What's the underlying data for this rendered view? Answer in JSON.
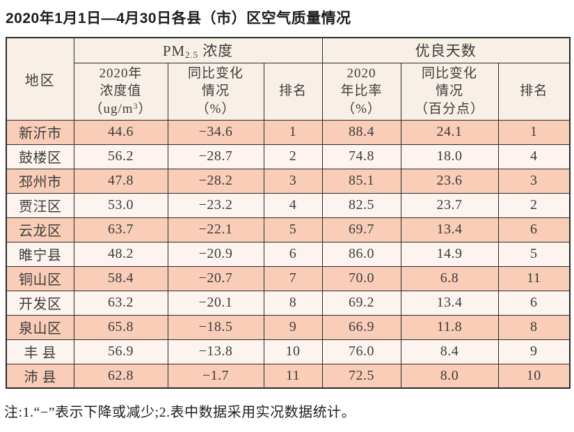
{
  "title": "2020年1月1日—4月30日各县（市）区空气质量情况",
  "footnote": "注:1.“−”表示下降或减少;2.表中数据采用实况数据统计。",
  "colors": {
    "row_odd_bg": "#f9cdb7",
    "row_even_bg": "#fdf4ef",
    "header_bg": "#f8f0e7",
    "border": "#2a2a2a",
    "text": "#3c3c3c",
    "title_text": "#1c1c1c"
  },
  "table": {
    "headers": {
      "region": "地区",
      "pm25_group": {
        "prefix": "PM",
        "sub": "2.5",
        "suffix": " 浓度"
      },
      "good_group": "优良天数",
      "pm25_value": {
        "line1": "2020年",
        "line2": "浓度值",
        "unit_prefix": "（ug/m",
        "unit_sup": "3",
        "unit_suffix": "）"
      },
      "pm25_change": {
        "line1": "同比变化",
        "line2": "情况",
        "line3": "（%）"
      },
      "pm25_rank": "排名",
      "good_value": {
        "line1": "2020",
        "line2": "年比率",
        "line3": "（%）"
      },
      "good_change": {
        "line1": "同比变化",
        "line2": "情况",
        "line3": "（百分点）"
      },
      "good_rank": "排名"
    },
    "rows": [
      {
        "region": "新沂市",
        "pm25_value": "44.6",
        "pm25_change": "−34.6",
        "pm25_rank": "1",
        "good_value": "88.4",
        "good_change": "24.1",
        "good_rank": "1"
      },
      {
        "region": "鼓楼区",
        "pm25_value": "56.2",
        "pm25_change": "−28.7",
        "pm25_rank": "2",
        "good_value": "74.8",
        "good_change": "18.0",
        "good_rank": "4"
      },
      {
        "region": "邳州市",
        "pm25_value": "47.8",
        "pm25_change": "−28.2",
        "pm25_rank": "3",
        "good_value": "85.1",
        "good_change": "23.6",
        "good_rank": "3"
      },
      {
        "region": "贾汪区",
        "pm25_value": "53.0",
        "pm25_change": "−23.2",
        "pm25_rank": "4",
        "good_value": "82.5",
        "good_change": "23.7",
        "good_rank": "2"
      },
      {
        "region": "云龙区",
        "pm25_value": "63.7",
        "pm25_change": "−22.1",
        "pm25_rank": "5",
        "good_value": "69.7",
        "good_change": "13.4",
        "good_rank": "6"
      },
      {
        "region": "睢宁县",
        "pm25_value": "48.2",
        "pm25_change": "−20.9",
        "pm25_rank": "6",
        "good_value": "86.0",
        "good_change": "14.9",
        "good_rank": "5"
      },
      {
        "region": "铜山区",
        "pm25_value": "58.4",
        "pm25_change": "−20.7",
        "pm25_rank": "7",
        "good_value": "70.0",
        "good_change": "6.8",
        "good_rank": "11"
      },
      {
        "region": "开发区",
        "pm25_value": "63.2",
        "pm25_change": "−20.1",
        "pm25_rank": "8",
        "good_value": "69.2",
        "good_change": "13.4",
        "good_rank": "6"
      },
      {
        "region": "泉山区",
        "pm25_value": "65.8",
        "pm25_change": "−18.5",
        "pm25_rank": "9",
        "good_value": "66.9",
        "good_change": "11.8",
        "good_rank": "8"
      },
      {
        "region": "丰 县",
        "pm25_value": "56.9",
        "pm25_change": "−13.8",
        "pm25_rank": "10",
        "good_value": "76.0",
        "good_change": "8.4",
        "good_rank": "9"
      },
      {
        "region": "沛 县",
        "pm25_value": "62.8",
        "pm25_change": "−1.7",
        "pm25_rank": "11",
        "good_value": "72.5",
        "good_change": "8.0",
        "good_rank": "10"
      }
    ]
  }
}
